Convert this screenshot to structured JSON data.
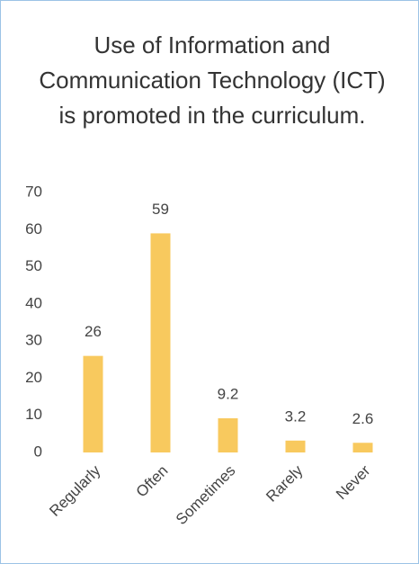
{
  "chart_data": {
    "type": "bar",
    "title": "Use of Information and Communication Technology (ICT) is promoted in the curriculum.",
    "categories": [
      "Regularly",
      "Often",
      "Sometimes",
      "Rarely",
      "Never"
    ],
    "values": [
      26,
      59,
      9.2,
      3.2,
      2.6
    ],
    "color": "#f8c95e",
    "ylim": [
      0,
      70
    ],
    "yticks": [
      0,
      10,
      20,
      30,
      40,
      50,
      60,
      70
    ],
    "grid": false
  }
}
